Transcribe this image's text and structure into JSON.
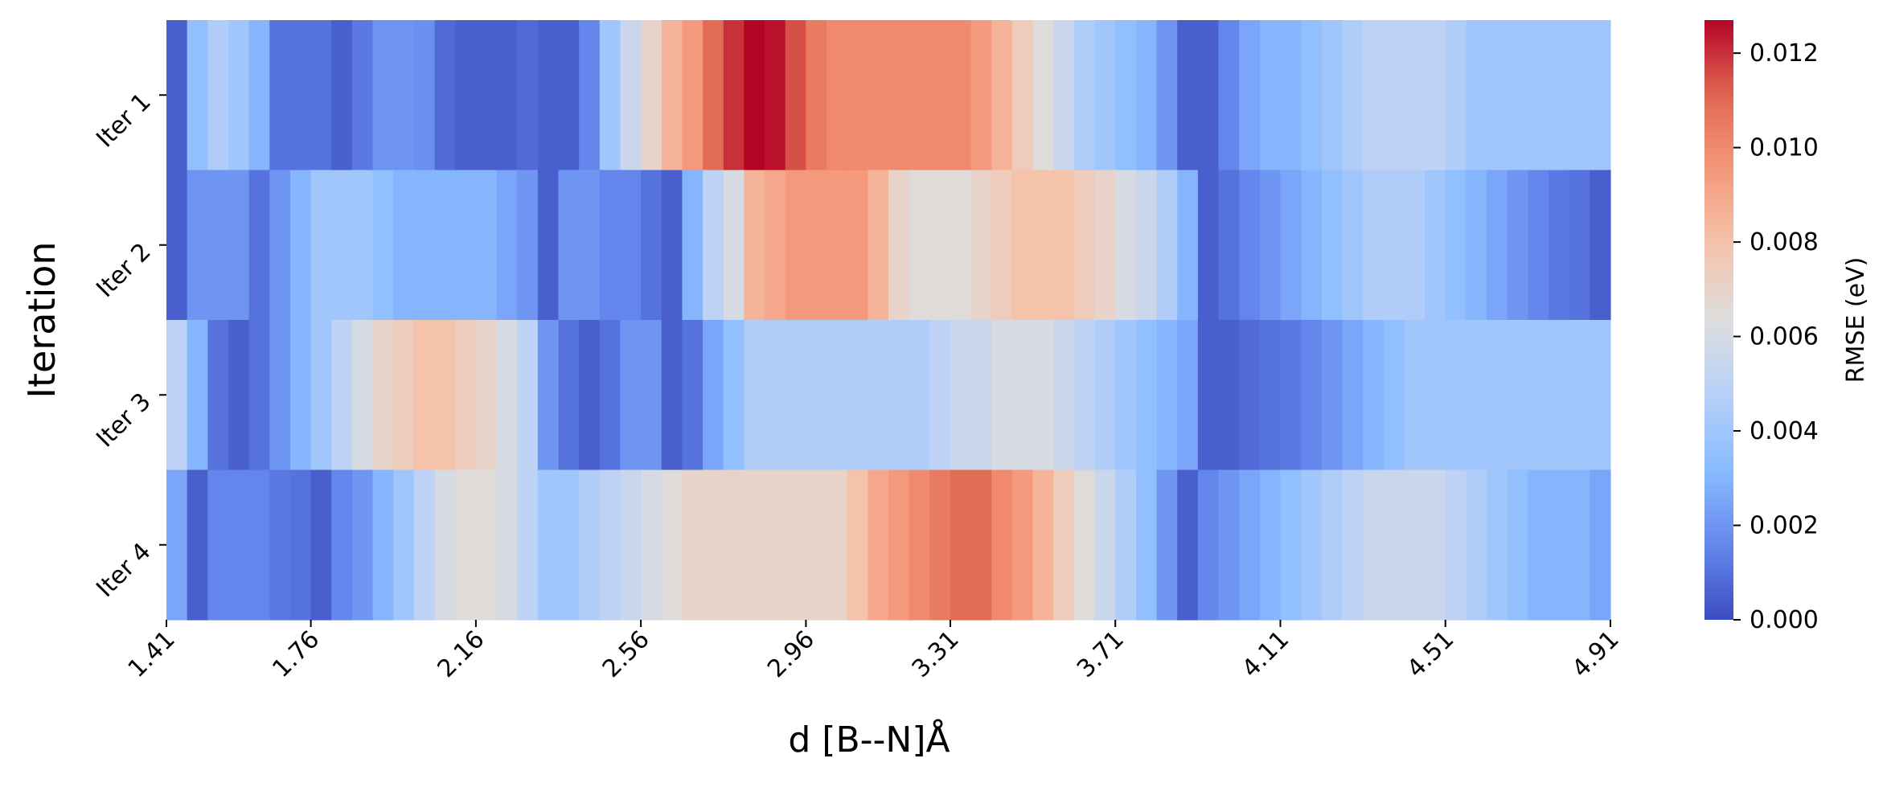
{
  "chart_data": {
    "type": "heatmap",
    "xlabel": "d [B--N]Å",
    "ylabel": "Iteration",
    "colorbar_label": "RMSE (eV)",
    "rows": [
      "Iter 1",
      "Iter 2",
      "Iter 3",
      "Iter 4"
    ],
    "x_tick_labels": [
      "1.41",
      "1.76",
      "2.16",
      "2.56",
      "2.96",
      "3.31",
      "3.71",
      "4.11",
      "4.51",
      "4.91"
    ],
    "x_range": [
      1.41,
      4.91
    ],
    "colorbar_ticks": [
      "0.000",
      "0.002",
      "0.004",
      "0.006",
      "0.008",
      "0.010",
      "0.012"
    ],
    "color_range": [
      0.0,
      0.0127
    ],
    "colormap": "coolwarm",
    "colormap_stops": [
      "#3b4cc0",
      "#6688ee",
      "#88bbff",
      "#b8d0f9",
      "#dddddd",
      "#f5c4ac",
      "#f4987a",
      "#e26952",
      "#b40426"
    ],
    "values": [
      [
        0.0005,
        0.0035,
        0.0045,
        0.004,
        0.003,
        0.001,
        0.001,
        0.001,
        0.0005,
        0.0012,
        0.002,
        0.002,
        0.0018,
        0.0008,
        0.0005,
        0.0005,
        0.0005,
        0.0008,
        0.0005,
        0.0005,
        0.0015,
        0.004,
        0.0055,
        0.007,
        0.0085,
        0.0095,
        0.011,
        0.012,
        0.0127,
        0.0125,
        0.0115,
        0.0105,
        0.01,
        0.01,
        0.01,
        0.01,
        0.01,
        0.01,
        0.01,
        0.0095,
        0.0085,
        0.0075,
        0.0065,
        0.0055,
        0.0045,
        0.004,
        0.0035,
        0.003,
        0.002,
        0.0005,
        0.0005,
        0.0015,
        0.0025,
        0.003,
        0.003,
        0.0035,
        0.004,
        0.0045,
        0.005,
        0.005,
        0.005,
        0.005,
        0.0045,
        0.004,
        0.004,
        0.004,
        0.004,
        0.004,
        0.004,
        0.004
      ],
      [
        0.0005,
        0.002,
        0.002,
        0.002,
        0.001,
        0.002,
        0.003,
        0.004,
        0.004,
        0.004,
        0.0035,
        0.003,
        0.003,
        0.003,
        0.003,
        0.003,
        0.0025,
        0.002,
        0.0005,
        0.002,
        0.002,
        0.0015,
        0.0015,
        0.001,
        0.0005,
        0.003,
        0.005,
        0.006,
        0.0085,
        0.009,
        0.0095,
        0.0095,
        0.0095,
        0.0095,
        0.0085,
        0.007,
        0.0065,
        0.0065,
        0.0065,
        0.007,
        0.0075,
        0.008,
        0.008,
        0.008,
        0.0075,
        0.007,
        0.006,
        0.0055,
        0.0045,
        0.003,
        0.0005,
        0.001,
        0.0015,
        0.002,
        0.0025,
        0.003,
        0.0035,
        0.004,
        0.0045,
        0.0045,
        0.0045,
        0.004,
        0.0035,
        0.003,
        0.0025,
        0.002,
        0.0015,
        0.0012,
        0.001,
        0.0005
      ],
      [
        0.005,
        0.003,
        0.001,
        0.0005,
        0.001,
        0.002,
        0.003,
        0.004,
        0.005,
        0.006,
        0.007,
        0.0075,
        0.008,
        0.008,
        0.0075,
        0.007,
        0.006,
        0.005,
        0.002,
        0.001,
        0.0005,
        0.001,
        0.002,
        0.002,
        0.0005,
        0.001,
        0.0025,
        0.0035,
        0.0045,
        0.0045,
        0.0045,
        0.0045,
        0.0045,
        0.0045,
        0.0045,
        0.0045,
        0.0045,
        0.005,
        0.0055,
        0.0055,
        0.006,
        0.006,
        0.006,
        0.0055,
        0.005,
        0.0045,
        0.004,
        0.0035,
        0.003,
        0.0025,
        0.0005,
        0.0005,
        0.0008,
        0.001,
        0.0012,
        0.0015,
        0.002,
        0.0025,
        0.003,
        0.0035,
        0.004,
        0.004,
        0.004,
        0.004,
        0.004,
        0.004,
        0.004,
        0.004,
        0.004,
        0.004
      ],
      [
        0.0025,
        0.0005,
        0.0015,
        0.0015,
        0.0015,
        0.0012,
        0.001,
        0.0005,
        0.0015,
        0.002,
        0.003,
        0.004,
        0.005,
        0.006,
        0.0065,
        0.0065,
        0.006,
        0.005,
        0.004,
        0.004,
        0.0045,
        0.005,
        0.0055,
        0.006,
        0.0065,
        0.007,
        0.007,
        0.007,
        0.007,
        0.007,
        0.007,
        0.007,
        0.007,
        0.008,
        0.009,
        0.0095,
        0.01,
        0.0105,
        0.011,
        0.011,
        0.01,
        0.0095,
        0.0085,
        0.0075,
        0.0065,
        0.0055,
        0.0045,
        0.0035,
        0.002,
        0.0005,
        0.0015,
        0.002,
        0.0025,
        0.003,
        0.0035,
        0.004,
        0.0045,
        0.005,
        0.0055,
        0.0055,
        0.0055,
        0.0055,
        0.005,
        0.0045,
        0.004,
        0.0035,
        0.003,
        0.003,
        0.003,
        0.0025
      ]
    ]
  }
}
